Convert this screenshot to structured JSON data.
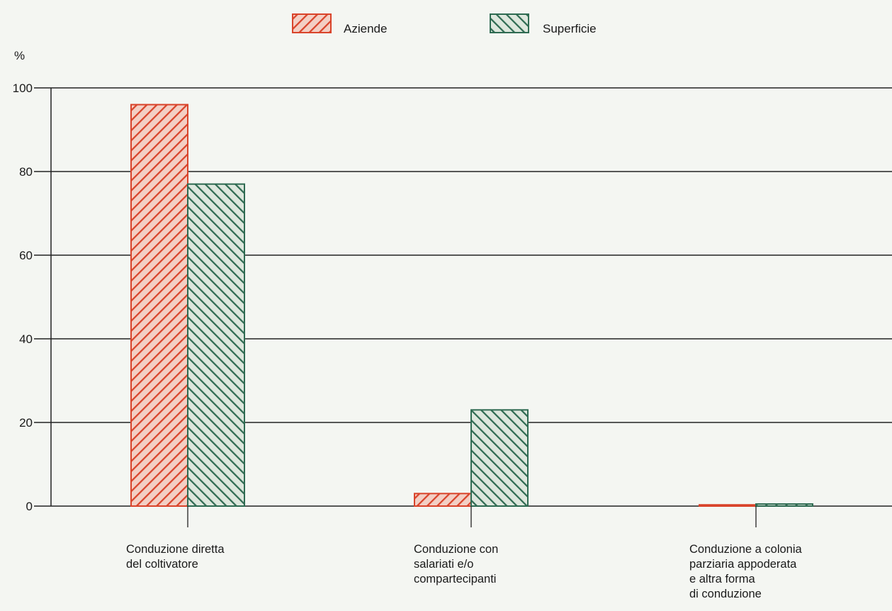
{
  "chart_data": {
    "type": "bar",
    "ylabel": "%",
    "ylim": [
      0,
      100
    ],
    "yticks": [
      0,
      20,
      40,
      60,
      80,
      100
    ],
    "grid": true,
    "legend_position": "top-center",
    "categories": [
      [
        "Conduzione diretta",
        "del coltivatore"
      ],
      [
        "Conduzione con",
        "salariati e/o",
        "compartecipanti"
      ],
      [
        "Conduzione a colonia",
        "parziaria appoderata",
        "e altra forma",
        "di conduzione"
      ]
    ],
    "series": [
      {
        "name": "Aziende",
        "values": [
          96,
          3,
          0.3
        ],
        "color": "#d9442b",
        "fill": "#f3cfc4",
        "pattern": "hatch-forward"
      },
      {
        "name": "Superficie",
        "values": [
          77,
          23,
          0.5
        ],
        "color": "#2f6b52",
        "fill": "#dde7dd",
        "pattern": "hatch-backward"
      }
    ]
  }
}
